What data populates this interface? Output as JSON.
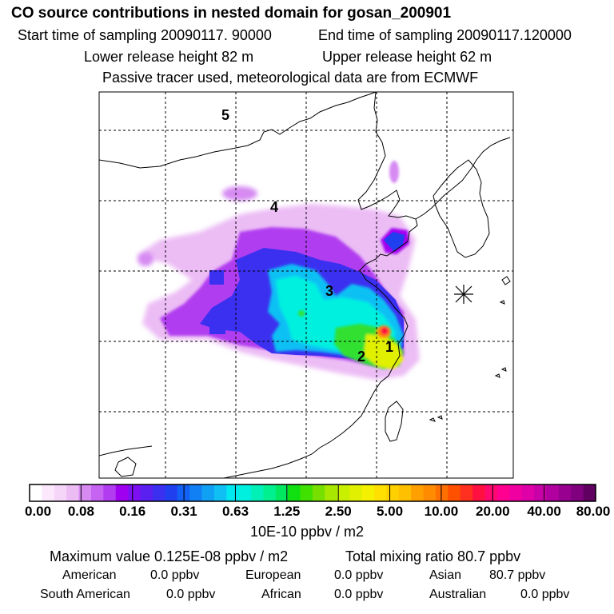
{
  "header": {
    "title": "CO  source contributions in nested domain for gosan_200901",
    "start_time": "Start time of sampling 20090117. 90000",
    "end_time": "End time of sampling 20090117.120000",
    "lower_height": "Lower release height   82 m",
    "upper_height": "Upper release height   62 m",
    "tracer_note": "Passive tracer used, meteorological data are from ECMWF"
  },
  "map": {
    "region_labels": [
      "1",
      "2",
      "3",
      "4",
      "5"
    ],
    "receptor_marker": "star-marker",
    "colors": {
      "low": "#f4c8f8",
      "purple": "#a000f0",
      "blue": "#2a3cf0",
      "cyan": "#00f0f0",
      "green": "#30e030",
      "yellow": "#e8f000",
      "orange": "#ff8000",
      "red": "#ff1010"
    }
  },
  "colorbar": {
    "ticks": [
      "0.00",
      "0.08",
      "0.16",
      "0.31",
      "0.63",
      "1.25",
      "2.50",
      "5.00",
      "10.00",
      "20.00",
      "40.00",
      "80.00"
    ],
    "units": "10E-10 ppbv / m2",
    "colors": [
      "#ffffff",
      "#fbe8fc",
      "#f5d6f8",
      "#ecbcf5",
      "#d68af2",
      "#c663f2",
      "#b13cf0",
      "#a000f0",
      "#7d10f0",
      "#5a20f0",
      "#3c30f0",
      "#2040f0",
      "#1260f4",
      "#1080f4",
      "#10a0f4",
      "#10c0f4",
      "#00e8f0",
      "#00f0e0",
      "#00f0b8",
      "#00f090",
      "#00e860",
      "#10e010",
      "#40e000",
      "#78e000",
      "#a8e800",
      "#c8f000",
      "#e0f000",
      "#f4f000",
      "#ffe000",
      "#ffd000",
      "#ffc000",
      "#ffa000",
      "#ff8c00",
      "#ff7000",
      "#ff5000",
      "#ff3020",
      "#ff1040",
      "#ff0870",
      "#ff0090",
      "#f000a0",
      "#e000a8",
      "#c800a8",
      "#b000a0",
      "#980090",
      "#800080",
      "#600060"
    ]
  },
  "footer": {
    "max_value": "Maximum value  0.125E-08 ppbv / m2",
    "total_mixing": "Total mixing ratio       80.7 ppbv",
    "american_label": "American",
    "american_value": "0.0 ppbv",
    "european_label": "European",
    "european_value": "0.0 ppbv",
    "asian_label": "Asian",
    "asian_value": "80.7 ppbv",
    "south_american_label": "South American",
    "south_american_value": "0.0 ppbv",
    "african_label": "African",
    "african_value": "0.0 ppbv",
    "australian_label": "Australian",
    "australian_value": "0.0 ppbv"
  }
}
